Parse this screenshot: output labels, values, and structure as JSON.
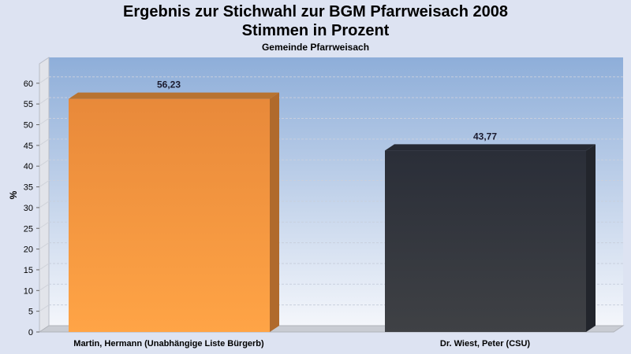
{
  "chart_data": {
    "type": "bar",
    "title": "Ergebnis zur Stichwahl zur BGM Pfarrweisach 2008",
    "title_line2": "Stimmen in Prozent",
    "subtitle": "Gemeinde Pfarrweisach",
    "ylabel": "%",
    "xlabel": "",
    "ylim": [
      0,
      65
    ],
    "yticks": [
      0,
      5,
      10,
      15,
      20,
      25,
      30,
      35,
      40,
      45,
      50,
      55,
      60
    ],
    "grid": true,
    "categories": [
      "Martin, Hermann (Unabhängige Liste Bürgerb)",
      "Dr. Wiest, Peter (CSU)"
    ],
    "values": [
      56.23,
      43.77
    ],
    "value_labels": [
      "56,23",
      "43,77"
    ],
    "colors": {
      "bar1": "#f59a3c",
      "bar2": "#35393f",
      "plot_top": "#8eaed9",
      "plot_bottom": "#f4f6fb"
    }
  }
}
